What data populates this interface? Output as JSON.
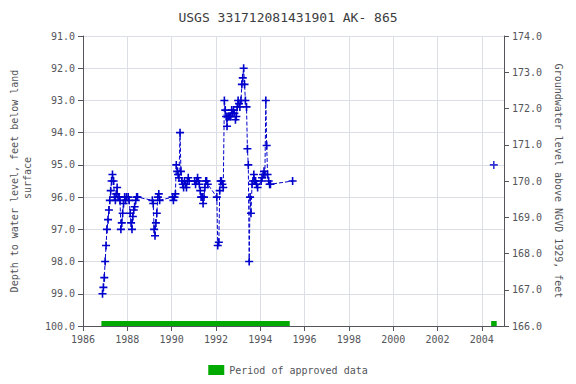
{
  "chart_data": {
    "type": "line",
    "title": "USGS 331712081431901 AK- 865",
    "x_label": null,
    "y_label": "Depth to water level, feet below land\n surface",
    "y2_label": "Groundwater level above NGVD 1929, feet",
    "xlim": [
      1986,
      2005
    ],
    "xticks": [
      1986,
      1988,
      1990,
      1992,
      1994,
      1996,
      1998,
      2000,
      2002,
      2004
    ],
    "ylim": [
      100.0,
      91.0
    ],
    "yticks": [
      {
        "value": 91.0,
        "label": "91.0"
      },
      {
        "value": 92.0,
        "label": "92.0"
      },
      {
        "value": 93.0,
        "label": "93.0"
      },
      {
        "value": 94.0,
        "label": "94.0"
      },
      {
        "value": 95.0,
        "label": "95.0"
      },
      {
        "value": 96.0,
        "label": "96.0"
      },
      {
        "value": 97.0,
        "label": "97.0"
      },
      {
        "value": 98.0,
        "label": "98.0"
      },
      {
        "value": 99.0,
        "label": "99.0"
      },
      {
        "value": 100.0,
        "label": "100.0"
      }
    ],
    "y2lim": [
      166.0,
      174.0
    ],
    "y2ticks": [
      {
        "value": 166.0,
        "label": "166.0"
      },
      {
        "value": 167.0,
        "label": "167.0"
      },
      {
        "value": 168.0,
        "label": "168.0"
      },
      {
        "value": 169.0,
        "label": "169.0"
      },
      {
        "value": 170.0,
        "label": "170.0"
      },
      {
        "value": 171.0,
        "label": "171.0"
      },
      {
        "value": 172.0,
        "label": "172.0"
      },
      {
        "value": 173.0,
        "label": "173.0"
      },
      {
        "value": 174.0,
        "label": "174.0"
      }
    ],
    "grid": true,
    "legend": "bottom",
    "series": [
      {
        "type": "line",
        "color": "#0000cc",
        "marker": "+",
        "line_style": "dashed",
        "x": [
          1986.88,
          1986.92,
          1986.96,
          1987.0,
          1987.04,
          1987.08,
          1987.13,
          1987.17,
          1987.21,
          1987.25,
          1987.29,
          1987.33,
          1987.38,
          1987.42,
          1987.46,
          1987.5,
          1987.54,
          1987.58,
          1987.63,
          1987.67,
          1987.71,
          1987.75,
          1987.79,
          1987.83,
          1987.88,
          1987.92,
          1987.96,
          1988.04,
          1988.08,
          1988.13,
          1988.17,
          1988.21,
          1988.25,
          1988.29,
          1988.33,
          1988.38,
          1988.42,
          1988.46,
          1989.13,
          1989.17,
          1989.21,
          1989.25,
          1989.29,
          1989.33,
          1989.38,
          1989.42,
          1989.46,
          1990.04,
          1990.08,
          1990.13,
          1990.17,
          1990.21,
          1990.25,
          1990.29,
          1990.33,
          1990.38,
          1990.42,
          1990.46,
          1990.5,
          1990.54,
          1990.58,
          1990.63,
          1990.67,
          1990.71,
          1990.75,
          1990.79,
          1991.04,
          1991.08,
          1991.13,
          1991.17,
          1991.21,
          1991.25,
          1991.29,
          1991.33,
          1991.38,
          1991.42,
          1991.46,
          1991.5,
          1991.54,
          1991.58,
          1991.63,
          1992.04,
          1992.08,
          1992.13,
          1992.17,
          1992.21,
          1992.25,
          1992.29,
          1992.33,
          1992.38,
          1992.42,
          1992.46,
          1992.5,
          1992.54,
          1992.58,
          1992.63,
          1992.67,
          1992.71,
          1992.75,
          1992.79,
          1992.83,
          1992.88,
          1992.92,
          1992.96,
          1993.0,
          1993.04,
          1993.08,
          1993.13,
          1993.17,
          1993.21,
          1993.25,
          1993.29,
          1993.33,
          1993.38,
          1993.42,
          1993.46,
          1993.5,
          1993.54,
          1993.58,
          1993.63,
          1993.67,
          1993.71,
          1993.75,
          1993.79,
          1993.83,
          1993.88,
          1994.04,
          1994.08,
          1994.13,
          1994.17,
          1994.21,
          1994.25,
          1994.29,
          1994.33,
          1994.38,
          1994.42,
          1994.46,
          1995.46
        ],
        "values": [
          99.0,
          98.8,
          98.5,
          98.0,
          97.5,
          97.0,
          96.7,
          96.4,
          96.1,
          95.8,
          95.5,
          95.3,
          95.5,
          96.0,
          96.1,
          95.9,
          95.7,
          96.0,
          96.0,
          96.1,
          97.0,
          96.8,
          96.5,
          96.2,
          96.0,
          96.1,
          96.0,
          96.0,
          96.1,
          96.5,
          96.8,
          97.0,
          96.6,
          96.4,
          96.3,
          96.1,
          96.0,
          96.0,
          96.1,
          96.2,
          97.0,
          97.2,
          96.8,
          96.5,
          96.0,
          95.9,
          96.1,
          96.0,
          96.1,
          96.0,
          95.9,
          95.0,
          95.2,
          95.3,
          95.4,
          94.0,
          95.2,
          95.5,
          95.6,
          95.7,
          95.5,
          95.6,
          95.7,
          95.5,
          95.4,
          95.5,
          95.5,
          95.6,
          95.5,
          95.4,
          95.5,
          95.6,
          95.8,
          96.0,
          96.0,
          96.2,
          96.0,
          95.7,
          95.5,
          95.5,
          95.6,
          96.0,
          97.5,
          97.4,
          95.8,
          95.5,
          95.5,
          95.6,
          95.7,
          93.0,
          93.3,
          93.5,
          93.8,
          93.5,
          93.5,
          93.5,
          93.5,
          93.3,
          93.4,
          93.3,
          93.4,
          93.6,
          93.5,
          93.2,
          93.0,
          93.1,
          93.2,
          93.0,
          92.5,
          92.3,
          92.0,
          92.5,
          93.0,
          93.2,
          94.5,
          95.0,
          98.0,
          96.0,
          96.5,
          95.6,
          95.5,
          95.3,
          95.5,
          95.5,
          95.6,
          95.7,
          95.5,
          95.4,
          95.3,
          95.2,
          95.3,
          93.0,
          94.4,
          95.3,
          95.5,
          95.6,
          95.6,
          95.5
        ]
      },
      {
        "type": "scatter",
        "color": "#0000cc",
        "marker": "+",
        "x": [
          2004.54
        ],
        "values": [
          95.0
        ]
      },
      {
        "type": "period",
        "name": "Period of approved data",
        "color": "#00aa00",
        "periods": [
          [
            1986.83,
            1995.33
          ],
          [
            2004.42,
            2004.67
          ]
        ]
      }
    ]
  }
}
